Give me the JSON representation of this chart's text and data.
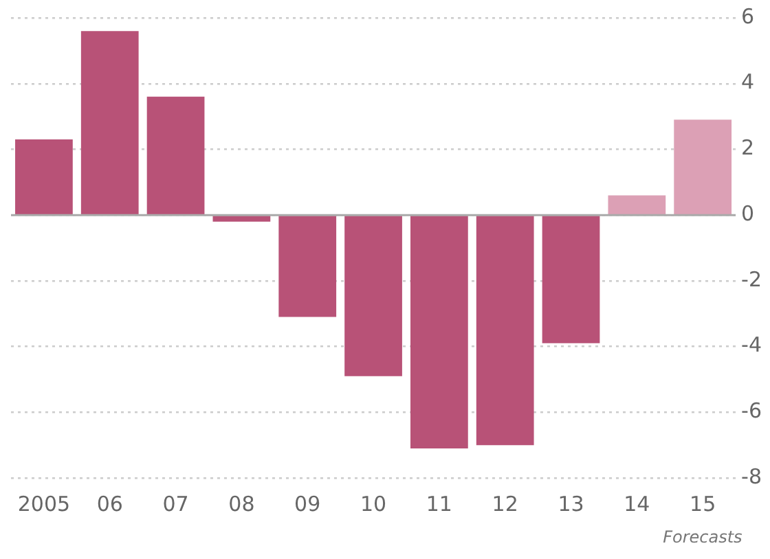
{
  "chart_data": {
    "type": "bar",
    "categories": [
      "2005",
      "06",
      "07",
      "08",
      "09",
      "10",
      "11",
      "12",
      "13",
      "14",
      "15"
    ],
    "values": [
      2.3,
      5.6,
      3.6,
      -0.2,
      -3.1,
      -4.9,
      -7.1,
      -7.0,
      -3.9,
      0.6,
      2.9
    ],
    "colors": [
      "#b85277",
      "#b85277",
      "#b85277",
      "#b85277",
      "#b85277",
      "#b85277",
      "#b85277",
      "#b85277",
      "#b85277",
      "#dca0b5",
      "#dca0b5"
    ],
    "ylim": [
      -8,
      6
    ],
    "yticks": [
      -8,
      -6,
      -4,
      -2,
      0,
      2,
      4,
      6
    ],
    "grid": "y",
    "legend": false,
    "ref_lines": [
      {
        "axis": "y",
        "value": 0,
        "color": "#aaaaaa",
        "line_style": "solid"
      }
    ],
    "annotations": [
      "Forecasts"
    ]
  }
}
